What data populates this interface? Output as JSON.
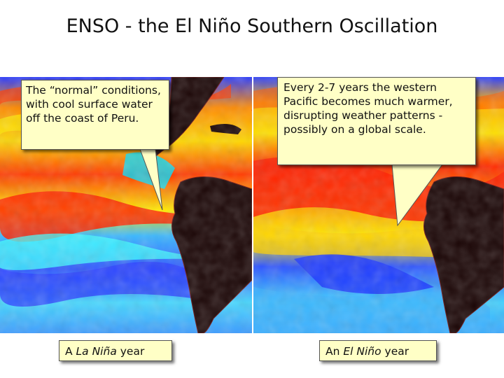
{
  "title": "ENSO - the El Niño Southern Oscillation",
  "left_panel": {
    "callout": "The “normal” conditions, with cool surface water off the coast of Peru.",
    "caption_prefix": "A ",
    "caption_italic": "La Niña",
    "caption_suffix": " year"
  },
  "right_panel": {
    "callout": "Every 2-7 years the western Pacific becomes much warmer, disrupting weather patterns - possibly on a global scale.",
    "caption_prefix": "An ",
    "caption_italic": "El Niño",
    "caption_suffix": " year"
  },
  "colors": {
    "callout_fill": "#ffffc6",
    "land": "#1a0505",
    "warm": "#ff2a00",
    "cool": "#3a6cff"
  }
}
